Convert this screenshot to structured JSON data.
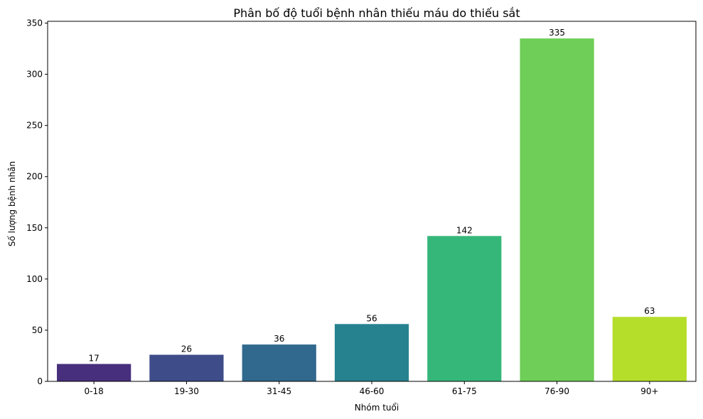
{
  "chart_data": {
    "type": "bar",
    "title": "Phân bố độ tuổi bệnh nhân thiếu máu do thiếu sắt",
    "xlabel": "Nhóm tuổi",
    "ylabel": "Số lượng bệnh nhân",
    "categories": [
      "0-18",
      "19-30",
      "31-45",
      "46-60",
      "61-75",
      "76-90",
      "90+"
    ],
    "values": [
      17,
      26,
      36,
      56,
      142,
      335,
      63
    ],
    "ylim": [
      0,
      351.75
    ],
    "yticks": [
      0,
      50,
      100,
      150,
      200,
      250,
      300,
      350
    ],
    "colors": [
      "#472f7d",
      "#3e4c8a",
      "#31688e",
      "#26828e",
      "#35b779",
      "#6ece58",
      "#b5de2b"
    ],
    "grid": false,
    "legend": "none"
  }
}
